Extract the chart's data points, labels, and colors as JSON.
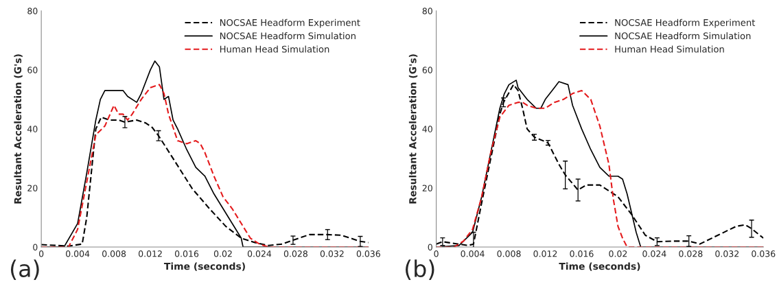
{
  "chart_data": [
    {
      "type": "line",
      "xlabel": "Time (seconds)",
      "ylabel": "Resultant Acceleration (G's)",
      "annotations": [
        "(a)"
      ],
      "xlim": [
        0,
        0.036
      ],
      "xticks": [
        0,
        0.004,
        0.008,
        0.012,
        0.016,
        0.02,
        0.024,
        0.028,
        0.032,
        0.036
      ],
      "ylim": [
        0,
        80
      ],
      "yticks": [
        0,
        20,
        40,
        60,
        80
      ],
      "grid": false,
      "legend": "top right",
      "series": [
        {
          "name": "NOCSAE Headform Experiment",
          "color": "#000000",
          "line_style": "dashed",
          "x": [
            0,
            0.003,
            0.0045,
            0.005,
            0.0055,
            0.006,
            0.0066,
            0.0075,
            0.0085,
            0.0092,
            0.0105,
            0.0115,
            0.0122,
            0.0129,
            0.0145,
            0.0166,
            0.0185,
            0.0203,
            0.022,
            0.0235,
            0.025,
            0.0265,
            0.0277,
            0.0295,
            0.0315,
            0.033,
            0.0351,
            0.036
          ],
          "values": [
            0.8,
            0.3,
            1,
            10,
            25,
            40,
            44,
            43,
            43,
            42.3,
            43,
            42,
            40.5,
            37.7,
            30,
            19.8,
            13,
            7,
            3,
            1.5,
            0.5,
            1,
            2.3,
            4.2,
            4.2,
            4,
            1.9,
            1.5
          ],
          "errors": [
            null,
            null,
            null,
            null,
            null,
            null,
            null,
            null,
            null,
            1.9,
            null,
            null,
            null,
            1.7,
            null,
            null,
            null,
            null,
            null,
            null,
            null,
            null,
            1.4,
            null,
            1.7,
            null,
            1.7,
            null
          ]
        },
        {
          "name": "NOCSAE Headform Simulation",
          "color": "#000000",
          "line_style": "solid",
          "x": [
            0,
            0.0025,
            0.004,
            0.005,
            0.006,
            0.0065,
            0.007,
            0.008,
            0.009,
            0.0095,
            0.0105,
            0.011,
            0.012,
            0.0125,
            0.013,
            0.0135,
            0.014,
            0.0145,
            0.015,
            0.016,
            0.017,
            0.018,
            0.019,
            0.02,
            0.021,
            0.022,
            0.0222,
            0.036
          ],
          "values": [
            0,
            0,
            8,
            25,
            43,
            50,
            53,
            53,
            53,
            51,
            49,
            52,
            60,
            63,
            61,
            50,
            51,
            43,
            40,
            33,
            27,
            24,
            18,
            13,
            8,
            3,
            0,
            0
          ]
        },
        {
          "name": "Human Head Simulation",
          "color": "#e41a1c",
          "line_style": "dashed",
          "x": [
            0,
            0.003,
            0.004,
            0.005,
            0.006,
            0.007,
            0.008,
            0.0085,
            0.009,
            0.0095,
            0.01,
            0.011,
            0.012,
            0.013,
            0.0135,
            0.014,
            0.015,
            0.016,
            0.017,
            0.0175,
            0.018,
            0.019,
            0.02,
            0.021,
            0.022,
            0.023,
            0.024,
            0.025,
            0.036
          ],
          "values": [
            0,
            0,
            6,
            22,
            38,
            41,
            48,
            45,
            45,
            43,
            45,
            50,
            54,
            55,
            52,
            45,
            36,
            35,
            36,
            35,
            32,
            24,
            17,
            13,
            8,
            3,
            1,
            0,
            0
          ]
        }
      ]
    },
    {
      "type": "line",
      "xlabel": "Time (seconds)",
      "ylabel": "Resultant Acceleration (G's)",
      "annotations": [
        "(b)"
      ],
      "xlim": [
        0,
        0.036
      ],
      "xticks": [
        0,
        0.004,
        0.008,
        0.012,
        0.016,
        0.02,
        0.024,
        0.028,
        0.032,
        0.036
      ],
      "ylim": [
        0,
        80
      ],
      "yticks": [
        0,
        20,
        40,
        60,
        80
      ],
      "grid": false,
      "legend": "top right",
      "series": [
        {
          "name": "NOCSAE Headform Experiment",
          "color": "#000000",
          "line_style": "dashed",
          "x": [
            0,
            0.0007,
            0.0035,
            0.0041,
            0.005,
            0.006,
            0.007,
            0.0074,
            0.0085,
            0.009,
            0.0095,
            0.01,
            0.0108,
            0.0123,
            0.0135,
            0.0142,
            0.0156,
            0.0165,
            0.018,
            0.02,
            0.0215,
            0.023,
            0.0243,
            0.026,
            0.0278,
            0.029,
            0.031,
            0.033,
            0.034,
            0.0347,
            0.036
          ],
          "values": [
            1,
            1.8,
            0.5,
            1,
            15,
            30,
            45,
            49,
            55,
            53,
            47,
            40,
            37.2,
            35.3,
            28,
            24.4,
            19.3,
            21,
            21,
            17,
            11,
            4,
            1.8,
            2,
            2,
            1,
            4,
            7,
            7.5,
            6.2,
            3
          ],
          "errors": [
            null,
            1.3,
            null,
            4,
            null,
            null,
            null,
            1.5,
            null,
            null,
            null,
            null,
            1,
            0.8,
            null,
            4.7,
            3.7,
            null,
            null,
            null,
            null,
            null,
            [
              0.5,
              3.1
            ],
            null,
            1.8,
            null,
            null,
            null,
            null,
            2.9,
            null
          ]
        },
        {
          "name": "NOCSAE Headform Simulation",
          "color": "#000000",
          "line_style": "solid",
          "x": [
            0,
            0.0025,
            0.004,
            0.005,
            0.006,
            0.007,
            0.0075,
            0.008,
            0.0088,
            0.009,
            0.01,
            0.011,
            0.0115,
            0.012,
            0.013,
            0.0135,
            0.0145,
            0.015,
            0.016,
            0.017,
            0.018,
            0.019,
            0.02,
            0.0205,
            0.021,
            0.022,
            0.0225,
            0.036
          ],
          "values": [
            0,
            0.5,
            5,
            17,
            32,
            47,
            52,
            55,
            56.5,
            54,
            50,
            47,
            47,
            50,
            54,
            56,
            55,
            48,
            40,
            33,
            27,
            24,
            24,
            23,
            18,
            5,
            0,
            0
          ]
        },
        {
          "name": "Human Head Simulation",
          "color": "#e41a1c",
          "line_style": "dashed",
          "x": [
            0,
            0.002,
            0.003,
            0.004,
            0.005,
            0.006,
            0.007,
            0.008,
            0.009,
            0.0095,
            0.01,
            0.011,
            0.012,
            0.013,
            0.014,
            0.015,
            0.016,
            0.017,
            0.018,
            0.019,
            0.0195,
            0.02,
            0.0205,
            0.021,
            0.036
          ],
          "values": [
            0,
            0,
            2,
            6,
            17,
            32,
            44,
            48,
            49,
            49,
            48,
            47,
            47,
            49,
            50,
            52,
            53,
            50,
            41,
            28,
            16,
            7,
            3,
            0,
            0
          ]
        }
      ]
    }
  ]
}
